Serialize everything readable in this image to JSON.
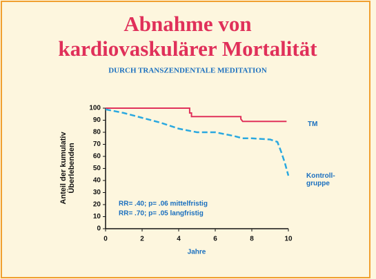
{
  "chart_data": {
    "type": "line",
    "title": [
      "Abnahme von",
      "kardiovaskulärer Mortalität"
    ],
    "subtitle": "DURCH TRANSZENDENTALE MEDITATION",
    "ylabel": [
      "Anteil der kumulativ",
      "Überlebenden"
    ],
    "xlabel": "Jahre",
    "annotations": [
      "RR= .40; p= .06 mittelfristig",
      "RR= .70; p= .05 langfristig"
    ],
    "xlim": [
      0,
      10
    ],
    "xticks": [
      0,
      2,
      4,
      6,
      8,
      10
    ],
    "ylim": [
      0,
      100
    ],
    "yticks": [
      0,
      10,
      20,
      30,
      40,
      50,
      60,
      70,
      80,
      90,
      100
    ],
    "series": [
      {
        "name": "TM",
        "color": "#e0305a",
        "dash": false,
        "x": [
          0,
          4.6,
          4.6,
          4.7,
          4.7,
          7.4,
          7.4,
          7.5,
          9.9
        ],
        "values": [
          100,
          100,
          96,
          96,
          93,
          93,
          91,
          89,
          89
        ]
      },
      {
        "name": "Kontroll- gruppe",
        "color": "#29a8e0",
        "dash": true,
        "x": [
          0,
          1,
          2,
          3,
          4,
          5,
          6,
          7,
          7.5,
          8,
          9,
          9.4,
          9.6,
          9.8,
          10
        ],
        "values": [
          99,
          96,
          92,
          88,
          83,
          80,
          80,
          77,
          75,
          75,
          74,
          72,
          64,
          55,
          44
        ]
      }
    ]
  }
}
